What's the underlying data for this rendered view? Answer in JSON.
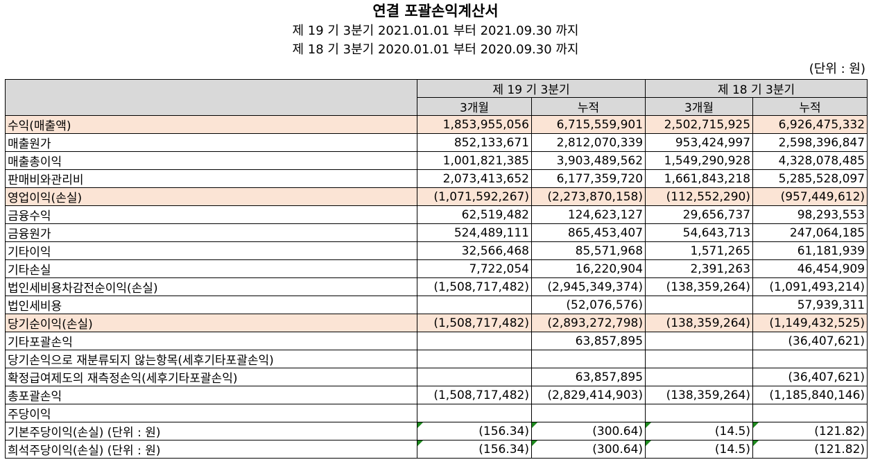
{
  "title": "연결 포괄손익계산서",
  "period_current": "제 19 기 3분기 2021.01.01 부터 2021.09.30 까지",
  "period_prior": "제 18 기 3분기 2020.01.01 부터 2020.09.30 까지",
  "unit": "(단위 : 원)",
  "columns": {
    "current_label": "제 19 기 3분기",
    "prior_label": "제 18 기 3분기",
    "sub": [
      "3개월",
      "누적",
      "3개월",
      "누적"
    ]
  },
  "rows": [
    {
      "label": "수익(매출액)",
      "values": [
        "1,853,955,056",
        "6,715,559,901",
        "2,502,715,925",
        "6,926,475,332"
      ]
    },
    {
      "label": "매출원가",
      "values": [
        "852,133,671",
        "2,812,070,339",
        "953,424,997",
        "2,598,396,847"
      ]
    },
    {
      "label": "매출총이익",
      "values": [
        "1,001,821,385",
        "3,903,489,562",
        "1,549,290,928",
        "4,328,078,485"
      ]
    },
    {
      "label": "판매비와관리비",
      "values": [
        "2,073,413,652",
        "6,177,359,720",
        "1,661,843,218",
        "5,285,528,097"
      ]
    },
    {
      "label": "영업이익(손실)",
      "values": [
        "(1,071,592,267)",
        "(2,273,870,158)",
        "(112,552,290)",
        "(957,449,612)"
      ]
    },
    {
      "label": "금융수익",
      "values": [
        "62,519,482",
        "124,623,127",
        "29,656,737",
        "98,293,553"
      ]
    },
    {
      "label": "금융원가",
      "values": [
        "524,489,111",
        "865,453,407",
        "54,643,713",
        "247,064,185"
      ]
    },
    {
      "label": "기타이익",
      "values": [
        "32,566,468",
        "85,571,968",
        "1,571,265",
        "61,181,939"
      ]
    },
    {
      "label": "기타손실",
      "values": [
        "7,722,054",
        "16,220,904",
        "2,391,263",
        "46,454,909"
      ]
    },
    {
      "label": "법인세비용차감전순이익(손실)",
      "values": [
        "(1,508,717,482)",
        "(2,945,349,374)",
        "(138,359,264)",
        "(1,091,493,214)"
      ]
    },
    {
      "label": "법인세비용",
      "values": [
        "",
        "(52,076,576)",
        "",
        "57,939,311"
      ]
    },
    {
      "label": "당기순이익(손실)",
      "values": [
        "(1,508,717,482)",
        "(2,893,272,798)",
        "(138,359,264)",
        "(1,149,432,525)"
      ]
    },
    {
      "label": "기타포괄손익",
      "values": [
        "",
        "63,857,895",
        "",
        "(36,407,621)"
      ]
    },
    {
      "label": "당기손익으로 재분류되지 않는항목(세후기타포괄손익)",
      "values": [
        "",
        "",
        "",
        ""
      ]
    },
    {
      "label": "확정급여제도의 재측정손익(세후기타포괄손익)",
      "values": [
        "",
        "63,857,895",
        "",
        "(36,407,621)"
      ]
    },
    {
      "label": "총포괄손익",
      "values": [
        "(1,508,717,482)",
        "(2,829,414,903)",
        "(138,359,264)",
        "(1,185,840,146)"
      ]
    },
    {
      "label": "주당이익",
      "values": [
        "",
        "",
        "",
        ""
      ]
    },
    {
      "label": "기본주당이익(손실) (단위 : 원)",
      "values": [
        "(156.34)",
        "(300.64)",
        "(14.5)",
        "(121.82)"
      ]
    },
    {
      "label": "희석주당이익(손실) (단위 : 원)",
      "values": [
        "(156.34)",
        "(300.64)",
        "(14.5)",
        "(121.82)"
      ]
    }
  ],
  "colors": {
    "header_bg": "#d9d9d9",
    "highlight_bg": "#fbe4d5",
    "flag": "#1e8a1e"
  }
}
